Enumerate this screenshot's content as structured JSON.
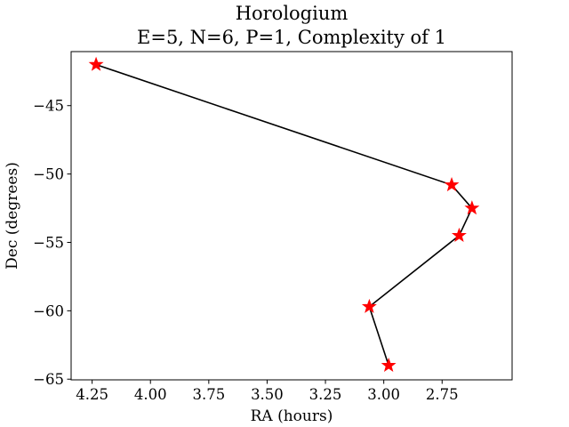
{
  "chart_data": {
    "type": "line",
    "title": [
      "Horologium",
      "E=5, N=6, P=1, Complexity of 1"
    ],
    "xlabel": "RA (hours)",
    "ylabel": "Dec (degrees)",
    "xlim": [
      4.34,
      2.45
    ],
    "ylim": [
      -65.05,
      -41.05
    ],
    "x_inverted": true,
    "grid": false,
    "xticks": [
      {
        "value": 4.25,
        "label": "4.25"
      },
      {
        "value": 4.0,
        "label": "4.00"
      },
      {
        "value": 3.75,
        "label": "3.75"
      },
      {
        "value": 3.5,
        "label": "3.50"
      },
      {
        "value": 3.25,
        "label": "3.25"
      },
      {
        "value": 3.0,
        "label": "3.00"
      },
      {
        "value": 2.75,
        "label": "2.75"
      }
    ],
    "yticks": [
      {
        "value": -45,
        "label": "−45"
      },
      {
        "value": -50,
        "label": "−50"
      },
      {
        "value": -55,
        "label": "−55"
      },
      {
        "value": -60,
        "label": "−60"
      },
      {
        "value": -65,
        "label": "−65"
      }
    ],
    "series": [
      {
        "line_color": "#000000",
        "marker": "star",
        "marker_color": "#ff0000",
        "points": [
          {
            "x": 4.233,
            "y": -42.0
          },
          {
            "x": 2.709,
            "y": -50.8
          },
          {
            "x": 2.622,
            "y": -52.5
          },
          {
            "x": 2.677,
            "y": -54.5
          },
          {
            "x": 3.062,
            "y": -59.7
          },
          {
            "x": 2.979,
            "y": -64.0
          }
        ]
      }
    ]
  }
}
